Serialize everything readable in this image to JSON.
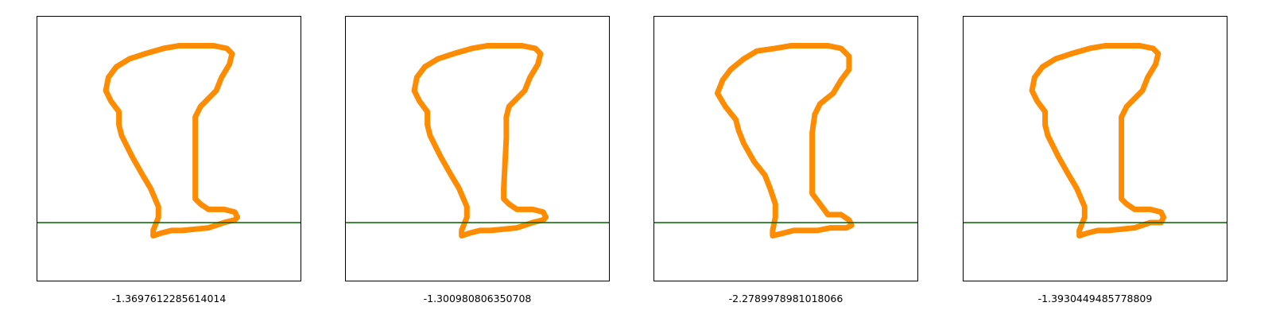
{
  "colors": {
    "shape": "#ff8c00",
    "line": "#006400",
    "frame": "#000000"
  },
  "chart_data": [
    {
      "type": "line",
      "title": "",
      "caption": "-1.3697612285614014",
      "grid": false,
      "baseline_y": 0.22,
      "contour": [
        [
          0.44,
          0.17
        ],
        [
          0.47,
          0.18
        ],
        [
          0.51,
          0.19
        ],
        [
          0.55,
          0.19
        ],
        [
          0.65,
          0.2
        ],
        [
          0.71,
          0.22
        ],
        [
          0.75,
          0.23
        ],
        [
          0.76,
          0.24
        ],
        [
          0.75,
          0.26
        ],
        [
          0.71,
          0.27
        ],
        [
          0.65,
          0.27
        ],
        [
          0.62,
          0.29
        ],
        [
          0.6,
          0.31
        ],
        [
          0.6,
          0.35
        ],
        [
          0.6,
          0.54
        ],
        [
          0.6,
          0.62
        ],
        [
          0.62,
          0.66
        ],
        [
          0.66,
          0.7
        ],
        [
          0.68,
          0.72
        ],
        [
          0.7,
          0.77
        ],
        [
          0.73,
          0.82
        ],
        [
          0.74,
          0.86
        ],
        [
          0.72,
          0.88
        ],
        [
          0.67,
          0.89
        ],
        [
          0.6,
          0.89
        ],
        [
          0.54,
          0.89
        ],
        [
          0.48,
          0.88
        ],
        [
          0.41,
          0.86
        ],
        [
          0.35,
          0.84
        ],
        [
          0.3,
          0.81
        ],
        [
          0.27,
          0.77
        ],
        [
          0.26,
          0.72
        ],
        [
          0.28,
          0.68
        ],
        [
          0.31,
          0.64
        ],
        [
          0.31,
          0.59
        ],
        [
          0.32,
          0.55
        ],
        [
          0.36,
          0.47
        ],
        [
          0.4,
          0.4
        ],
        [
          0.43,
          0.35
        ],
        [
          0.46,
          0.28
        ],
        [
          0.46,
          0.24
        ],
        [
          0.44,
          0.19
        ]
      ]
    },
    {
      "type": "line",
      "title": "",
      "caption": "-1.300980806350708",
      "grid": false,
      "baseline_y": 0.22,
      "contour": [
        [
          0.44,
          0.17
        ],
        [
          0.47,
          0.18
        ],
        [
          0.51,
          0.19
        ],
        [
          0.55,
          0.19
        ],
        [
          0.65,
          0.2
        ],
        [
          0.71,
          0.22
        ],
        [
          0.75,
          0.23
        ],
        [
          0.76,
          0.24
        ],
        [
          0.75,
          0.26
        ],
        [
          0.71,
          0.27
        ],
        [
          0.65,
          0.27
        ],
        [
          0.62,
          0.29
        ],
        [
          0.6,
          0.31
        ],
        [
          0.6,
          0.35
        ],
        [
          0.61,
          0.54
        ],
        [
          0.61,
          0.62
        ],
        [
          0.62,
          0.66
        ],
        [
          0.66,
          0.7
        ],
        [
          0.68,
          0.72
        ],
        [
          0.7,
          0.77
        ],
        [
          0.73,
          0.82
        ],
        [
          0.74,
          0.86
        ],
        [
          0.72,
          0.88
        ],
        [
          0.67,
          0.89
        ],
        [
          0.6,
          0.89
        ],
        [
          0.54,
          0.89
        ],
        [
          0.48,
          0.88
        ],
        [
          0.41,
          0.86
        ],
        [
          0.35,
          0.84
        ],
        [
          0.3,
          0.81
        ],
        [
          0.27,
          0.77
        ],
        [
          0.26,
          0.72
        ],
        [
          0.28,
          0.68
        ],
        [
          0.31,
          0.64
        ],
        [
          0.31,
          0.59
        ],
        [
          0.32,
          0.55
        ],
        [
          0.36,
          0.47
        ],
        [
          0.4,
          0.4
        ],
        [
          0.43,
          0.35
        ],
        [
          0.46,
          0.28
        ],
        [
          0.46,
          0.24
        ],
        [
          0.44,
          0.19
        ]
      ]
    },
    {
      "type": "line",
      "title": "",
      "caption": "-2.2789978981018066",
      "grid": false,
      "baseline_y": 0.22,
      "contour": [
        [
          0.45,
          0.17
        ],
        [
          0.49,
          0.18
        ],
        [
          0.53,
          0.19
        ],
        [
          0.57,
          0.19
        ],
        [
          0.62,
          0.19
        ],
        [
          0.67,
          0.2
        ],
        [
          0.73,
          0.2
        ],
        [
          0.75,
          0.21
        ],
        [
          0.74,
          0.23
        ],
        [
          0.71,
          0.25
        ],
        [
          0.66,
          0.25
        ],
        [
          0.63,
          0.29
        ],
        [
          0.6,
          0.33
        ],
        [
          0.6,
          0.37
        ],
        [
          0.6,
          0.56
        ],
        [
          0.61,
          0.63
        ],
        [
          0.63,
          0.67
        ],
        [
          0.68,
          0.71
        ],
        [
          0.71,
          0.76
        ],
        [
          0.74,
          0.8
        ],
        [
          0.74,
          0.85
        ],
        [
          0.71,
          0.88
        ],
        [
          0.66,
          0.89
        ],
        [
          0.58,
          0.89
        ],
        [
          0.52,
          0.89
        ],
        [
          0.46,
          0.88
        ],
        [
          0.39,
          0.87
        ],
        [
          0.34,
          0.84
        ],
        [
          0.29,
          0.8
        ],
        [
          0.26,
          0.76
        ],
        [
          0.24,
          0.71
        ],
        [
          0.27,
          0.66
        ],
        [
          0.31,
          0.61
        ],
        [
          0.32,
          0.57
        ],
        [
          0.34,
          0.52
        ],
        [
          0.38,
          0.45
        ],
        [
          0.42,
          0.4
        ],
        [
          0.44,
          0.35
        ],
        [
          0.46,
          0.29
        ],
        [
          0.46,
          0.24
        ],
        [
          0.45,
          0.19
        ]
      ]
    },
    {
      "type": "line",
      "title": "",
      "caption": "-1.3930449485778809",
      "grid": false,
      "baseline_y": 0.22,
      "contour": [
        [
          0.44,
          0.17
        ],
        [
          0.47,
          0.18
        ],
        [
          0.51,
          0.19
        ],
        [
          0.55,
          0.19
        ],
        [
          0.65,
          0.2
        ],
        [
          0.71,
          0.22
        ],
        [
          0.75,
          0.22
        ],
        [
          0.76,
          0.24
        ],
        [
          0.75,
          0.26
        ],
        [
          0.71,
          0.27
        ],
        [
          0.65,
          0.27
        ],
        [
          0.62,
          0.29
        ],
        [
          0.6,
          0.31
        ],
        [
          0.6,
          0.35
        ],
        [
          0.6,
          0.54
        ],
        [
          0.6,
          0.62
        ],
        [
          0.62,
          0.66
        ],
        [
          0.66,
          0.7
        ],
        [
          0.68,
          0.72
        ],
        [
          0.7,
          0.77
        ],
        [
          0.73,
          0.82
        ],
        [
          0.74,
          0.86
        ],
        [
          0.72,
          0.88
        ],
        [
          0.67,
          0.89
        ],
        [
          0.6,
          0.89
        ],
        [
          0.54,
          0.89
        ],
        [
          0.48,
          0.88
        ],
        [
          0.41,
          0.86
        ],
        [
          0.35,
          0.84
        ],
        [
          0.3,
          0.81
        ],
        [
          0.27,
          0.77
        ],
        [
          0.26,
          0.72
        ],
        [
          0.28,
          0.68
        ],
        [
          0.31,
          0.64
        ],
        [
          0.31,
          0.59
        ],
        [
          0.32,
          0.55
        ],
        [
          0.36,
          0.47
        ],
        [
          0.4,
          0.4
        ],
        [
          0.43,
          0.35
        ],
        [
          0.46,
          0.28
        ],
        [
          0.46,
          0.24
        ],
        [
          0.44,
          0.19
        ]
      ]
    }
  ]
}
